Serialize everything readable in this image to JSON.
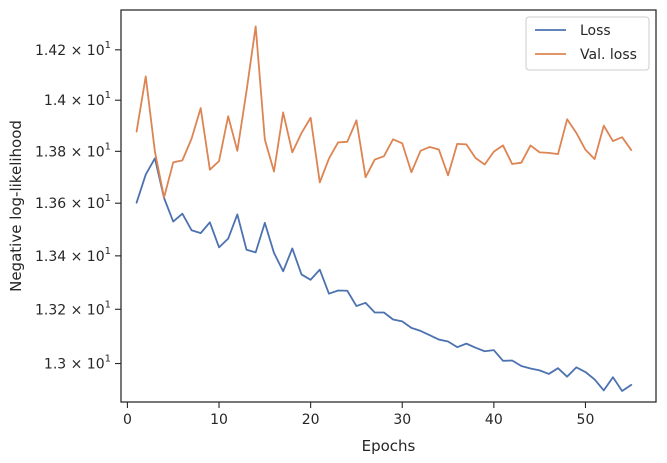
{
  "chart_data": {
    "type": "line",
    "xlabel": "Epochs",
    "ylabel": "Negative log-likelihood",
    "xlim": [
      -0.7,
      57.7
    ],
    "ylim": [
      12.86,
      14.36
    ],
    "yscale": "log",
    "grid": false,
    "legend_position": "top-right",
    "x_ticks": [
      0,
      10,
      20,
      30,
      40,
      50
    ],
    "x_tick_labels": [
      "0",
      "10",
      "20",
      "30",
      "40",
      "50"
    ],
    "y_ticks": [
      13.0,
      13.2,
      13.4,
      13.6,
      13.8,
      14.0,
      14.2
    ],
    "y_tick_labels": [
      {
        "mantissa": "1.3",
        "base": "10",
        "exp": "1"
      },
      {
        "mantissa": "1.32",
        "base": "10",
        "exp": "1"
      },
      {
        "mantissa": "1.34",
        "base": "10",
        "exp": "1"
      },
      {
        "mantissa": "1.36",
        "base": "10",
        "exp": "1"
      },
      {
        "mantissa": "1.38",
        "base": "10",
        "exp": "1"
      },
      {
        "mantissa": "1.4",
        "base": "10",
        "exp": "1"
      },
      {
        "mantissa": "1.42",
        "base": "10",
        "exp": "1"
      }
    ],
    "x": [
      1,
      2,
      3,
      4,
      5,
      6,
      7,
      8,
      9,
      10,
      11,
      12,
      13,
      14,
      15,
      16,
      17,
      18,
      19,
      20,
      21,
      22,
      23,
      24,
      25,
      26,
      27,
      28,
      29,
      30,
      31,
      32,
      33,
      34,
      35,
      36,
      37,
      38,
      39,
      40,
      41,
      42,
      43,
      44,
      45,
      46,
      47,
      48,
      49,
      50,
      51,
      52,
      53,
      54,
      55
    ],
    "series": [
      {
        "name": "Loss",
        "color": "#4c72b0",
        "values": [
          13.602,
          13.71,
          13.773,
          13.62,
          13.53,
          13.56,
          13.497,
          13.486,
          13.527,
          13.432,
          13.465,
          13.557,
          13.423,
          13.413,
          13.525,
          13.411,
          13.342,
          13.428,
          13.33,
          13.31,
          13.348,
          13.258,
          13.27,
          13.269,
          13.212,
          13.224,
          13.188,
          13.188,
          13.162,
          13.155,
          13.131,
          13.12,
          13.104,
          13.088,
          13.081,
          13.06,
          13.073,
          13.058,
          13.045,
          13.049,
          13.01,
          13.011,
          12.991,
          12.982,
          12.975,
          12.962,
          12.983,
          12.952,
          12.986,
          12.969,
          12.942,
          12.902,
          12.95,
          12.9,
          12.922
        ]
      },
      {
        "name": "Val. loss",
        "color": "#dd8452",
        "values": [
          13.877,
          14.094,
          13.799,
          13.622,
          13.757,
          13.765,
          13.849,
          13.969,
          13.729,
          13.762,
          13.937,
          13.802,
          14.036,
          14.294,
          13.846,
          13.722,
          13.952,
          13.796,
          13.871,
          13.931,
          13.68,
          13.772,
          13.835,
          13.837,
          13.921,
          13.7,
          13.768,
          13.781,
          13.847,
          13.831,
          13.719,
          13.802,
          13.817,
          13.807,
          13.707,
          13.829,
          13.827,
          13.774,
          13.749,
          13.799,
          13.823,
          13.751,
          13.756,
          13.823,
          13.796,
          13.794,
          13.789,
          13.925,
          13.872,
          13.806,
          13.77,
          13.9,
          13.84,
          13.855,
          13.805
        ]
      }
    ]
  }
}
